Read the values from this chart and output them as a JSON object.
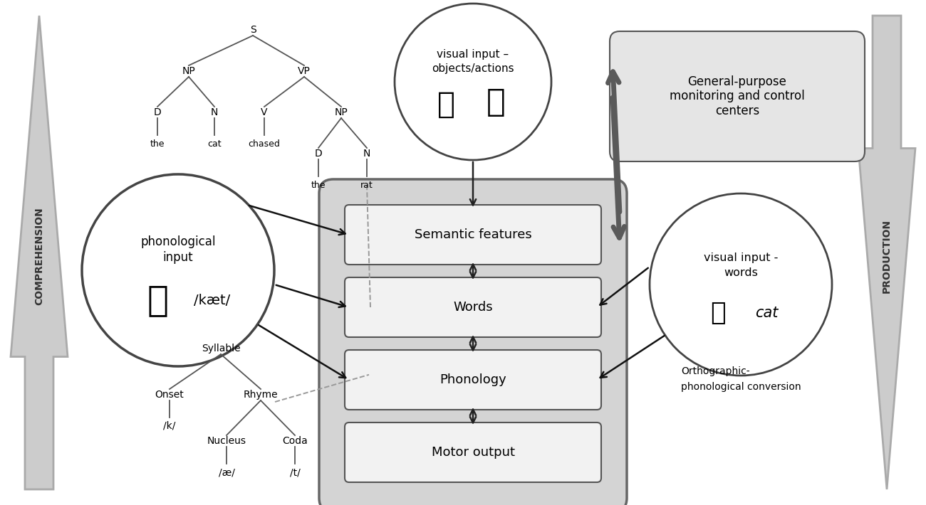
{
  "bg_color": "#ffffff",
  "arrow_shaft_color": "#cccccc",
  "arrow_edge_color": "#aaaaaa",
  "box_bg_central": "#d4d4d4",
  "box_bg_inner": "#efefef",
  "border_color": "#555555",
  "dark_arrow_color": "#5a5a5a",
  "comprehension_label": "COMPREHENSION",
  "production_label": "PRODUCTION",
  "semantic_label": "Semantic features",
  "words_label": "Words",
  "phonology_label": "Phonology",
  "motor_label": "Motor output",
  "visual_top_line1": "visual input –",
  "visual_top_line2": "objects/actions",
  "visual_right_line1": "visual input -",
  "visual_right_line2": "words",
  "phon_input_line1": "phonological",
  "phon_input_line2": "input",
  "phon_input_ipa": "/kæt/",
  "general_purpose_label": "General-purpose\nmonitoring and control\ncenters",
  "ortho_line1": "Orthographic-",
  "ortho_line2": "phonological conversion",
  "cat_italic": "cat"
}
